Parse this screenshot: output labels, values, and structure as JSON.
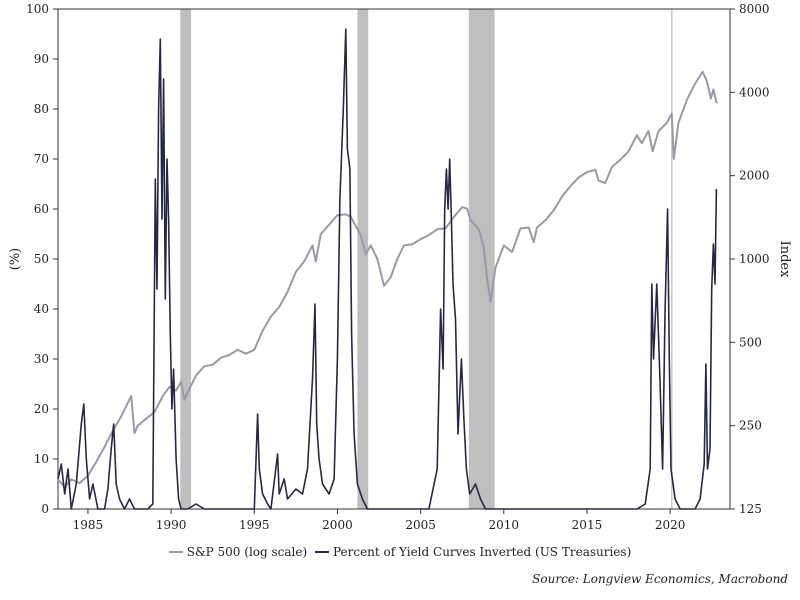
{
  "chart_data": {
    "type": "line",
    "xlim": [
      1983.2,
      2023.6
    ],
    "x_ticks": [
      1985,
      1990,
      1995,
      2000,
      2005,
      2010,
      2015,
      2020
    ],
    "left_axis": {
      "label": "(%)",
      "ylim": [
        0,
        100
      ],
      "ticks": [
        0,
        10,
        20,
        30,
        40,
        50,
        60,
        70,
        80,
        90,
        100
      ]
    },
    "right_axis": {
      "label": "Index",
      "scale": "log",
      "ylim": [
        125,
        8000
      ],
      "ticks": [
        125,
        250,
        500,
        1000,
        2000,
        4000,
        8000
      ]
    },
    "recessions": [
      [
        1990.55,
        1991.2
      ],
      [
        2001.2,
        2001.85
      ],
      [
        2007.9,
        2009.45
      ]
    ],
    "vertical_line_x": 2020.1,
    "series": [
      {
        "name": "S&P 500 (log scale)",
        "axis": "right",
        "color": "#9a99a6",
        "points": [
          [
            1983.2,
            160
          ],
          [
            1983.6,
            150
          ],
          [
            1984.0,
            160
          ],
          [
            1984.5,
            155
          ],
          [
            1985.0,
            165
          ],
          [
            1985.5,
            185
          ],
          [
            1986.0,
            210
          ],
          [
            1986.5,
            240
          ],
          [
            1987.0,
            270
          ],
          [
            1987.6,
            320
          ],
          [
            1987.8,
            235
          ],
          [
            1988.0,
            250
          ],
          [
            1988.5,
            265
          ],
          [
            1989.0,
            280
          ],
          [
            1989.5,
            320
          ],
          [
            1989.9,
            345
          ],
          [
            1990.3,
            335
          ],
          [
            1990.6,
            360
          ],
          [
            1990.8,
            310
          ],
          [
            1991.0,
            330
          ],
          [
            1991.5,
            380
          ],
          [
            1992.0,
            410
          ],
          [
            1992.5,
            415
          ],
          [
            1993.0,
            440
          ],
          [
            1993.5,
            450
          ],
          [
            1994.0,
            470
          ],
          [
            1994.5,
            455
          ],
          [
            1995.0,
            470
          ],
          [
            1995.5,
            550
          ],
          [
            1996.0,
            620
          ],
          [
            1996.5,
            670
          ],
          [
            1997.0,
            760
          ],
          [
            1997.5,
            900
          ],
          [
            1998.0,
            980
          ],
          [
            1998.5,
            1120
          ],
          [
            1998.7,
            980
          ],
          [
            1999.0,
            1230
          ],
          [
            1999.5,
            1330
          ],
          [
            2000.0,
            1440
          ],
          [
            2000.5,
            1450
          ],
          [
            2000.8,
            1420
          ],
          [
            2001.0,
            1350
          ],
          [
            2001.4,
            1220
          ],
          [
            2001.7,
            1040
          ],
          [
            2002.0,
            1120
          ],
          [
            2002.4,
            1000
          ],
          [
            2002.8,
            800
          ],
          [
            2003.2,
            860
          ],
          [
            2003.6,
            1000
          ],
          [
            2004.0,
            1120
          ],
          [
            2004.5,
            1130
          ],
          [
            2005.0,
            1180
          ],
          [
            2005.5,
            1220
          ],
          [
            2006.0,
            1280
          ],
          [
            2006.5,
            1290
          ],
          [
            2007.0,
            1420
          ],
          [
            2007.5,
            1540
          ],
          [
            2007.8,
            1520
          ],
          [
            2008.0,
            1380
          ],
          [
            2008.5,
            1280
          ],
          [
            2008.8,
            1100
          ],
          [
            2009.0,
            850
          ],
          [
            2009.2,
            700
          ],
          [
            2009.5,
            930
          ],
          [
            2010.0,
            1120
          ],
          [
            2010.5,
            1060
          ],
          [
            2011.0,
            1290
          ],
          [
            2011.5,
            1300
          ],
          [
            2011.8,
            1150
          ],
          [
            2012.0,
            1300
          ],
          [
            2012.5,
            1380
          ],
          [
            2013.0,
            1500
          ],
          [
            2013.5,
            1680
          ],
          [
            2014.0,
            1830
          ],
          [
            2014.5,
            1970
          ],
          [
            2015.0,
            2060
          ],
          [
            2015.5,
            2100
          ],
          [
            2015.7,
            1920
          ],
          [
            2016.1,
            1880
          ],
          [
            2016.5,
            2150
          ],
          [
            2017.0,
            2280
          ],
          [
            2017.5,
            2450
          ],
          [
            2018.0,
            2800
          ],
          [
            2018.3,
            2620
          ],
          [
            2018.7,
            2900
          ],
          [
            2018.95,
            2450
          ],
          [
            2019.3,
            2900
          ],
          [
            2019.8,
            3100
          ],
          [
            2020.1,
            3350
          ],
          [
            2020.22,
            2300
          ],
          [
            2020.5,
            3100
          ],
          [
            2021.0,
            3750
          ],
          [
            2021.5,
            4300
          ],
          [
            2021.95,
            4750
          ],
          [
            2022.2,
            4400
          ],
          [
            2022.45,
            3800
          ],
          [
            2022.6,
            4100
          ],
          [
            2022.8,
            3650
          ]
        ]
      },
      {
        "name": "Percent of Yield Curves Inverted (US Treasuries)",
        "axis": "left",
        "color": "#282844",
        "points": [
          [
            1983.2,
            6
          ],
          [
            1983.4,
            9
          ],
          [
            1983.6,
            3
          ],
          [
            1983.8,
            8
          ],
          [
            1984.0,
            0
          ],
          [
            1984.3,
            5
          ],
          [
            1984.6,
            17
          ],
          [
            1984.75,
            21
          ],
          [
            1984.9,
            10
          ],
          [
            1985.1,
            2
          ],
          [
            1985.3,
            5
          ],
          [
            1985.6,
            0
          ],
          [
            1986.0,
            0
          ],
          [
            1986.2,
            4
          ],
          [
            1986.4,
            12
          ],
          [
            1986.55,
            17
          ],
          [
            1986.7,
            5
          ],
          [
            1986.9,
            2
          ],
          [
            1987.2,
            0
          ],
          [
            1987.5,
            2
          ],
          [
            1987.8,
            0
          ],
          [
            1988.6,
            0
          ],
          [
            1988.9,
            1
          ],
          [
            1989.05,
            66
          ],
          [
            1989.15,
            44
          ],
          [
            1989.25,
            80
          ],
          [
            1989.35,
            94
          ],
          [
            1989.45,
            58
          ],
          [
            1989.55,
            86
          ],
          [
            1989.65,
            42
          ],
          [
            1989.75,
            70
          ],
          [
            1989.85,
            58
          ],
          [
            1989.95,
            35
          ],
          [
            1990.05,
            20
          ],
          [
            1990.15,
            28
          ],
          [
            1990.3,
            10
          ],
          [
            1990.45,
            2
          ],
          [
            1990.6,
            0
          ],
          [
            1991.0,
            0
          ],
          [
            1991.5,
            1
          ],
          [
            1992.0,
            0
          ],
          [
            1993.0,
            0
          ],
          [
            1994.0,
            0
          ],
          [
            1995.0,
            0
          ],
          [
            1995.2,
            19
          ],
          [
            1995.3,
            8
          ],
          [
            1995.5,
            3
          ],
          [
            1995.8,
            1
          ],
          [
            1996.0,
            0
          ],
          [
            1996.4,
            11
          ],
          [
            1996.5,
            3
          ],
          [
            1996.8,
            6
          ],
          [
            1997.0,
            2
          ],
          [
            1997.5,
            4
          ],
          [
            1997.9,
            3
          ],
          [
            1998.2,
            8
          ],
          [
            1998.5,
            26
          ],
          [
            1998.65,
            41
          ],
          [
            1998.75,
            17
          ],
          [
            1998.9,
            10
          ],
          [
            1999.1,
            5
          ],
          [
            1999.5,
            3
          ],
          [
            1999.8,
            6
          ],
          [
            2000.0,
            30
          ],
          [
            2000.15,
            62
          ],
          [
            2000.35,
            80
          ],
          [
            2000.5,
            96
          ],
          [
            2000.6,
            72
          ],
          [
            2000.75,
            68
          ],
          [
            2000.85,
            35
          ],
          [
            2001.0,
            15
          ],
          [
            2001.2,
            5
          ],
          [
            2001.5,
            2
          ],
          [
            2001.8,
            0
          ],
          [
            2002.5,
            0
          ],
          [
            2004.0,
            0
          ],
          [
            2005.5,
            0
          ],
          [
            2006.0,
            8
          ],
          [
            2006.2,
            40
          ],
          [
            2006.35,
            28
          ],
          [
            2006.45,
            60
          ],
          [
            2006.55,
            68
          ],
          [
            2006.65,
            60
          ],
          [
            2006.75,
            70
          ],
          [
            2006.85,
            58
          ],
          [
            2006.95,
            45
          ],
          [
            2007.1,
            38
          ],
          [
            2007.25,
            15
          ],
          [
            2007.45,
            30
          ],
          [
            2007.6,
            18
          ],
          [
            2007.75,
            8
          ],
          [
            2007.95,
            3
          ],
          [
            2008.3,
            5
          ],
          [
            2008.6,
            2
          ],
          [
            2008.9,
            0
          ],
          [
            2010.0,
            0
          ],
          [
            2012.0,
            0
          ],
          [
            2014.0,
            0
          ],
          [
            2016.0,
            0
          ],
          [
            2017.0,
            0
          ],
          [
            2018.0,
            0
          ],
          [
            2018.5,
            1
          ],
          [
            2018.8,
            8
          ],
          [
            2018.9,
            45
          ],
          [
            2019.0,
            30
          ],
          [
            2019.2,
            45
          ],
          [
            2019.4,
            25
          ],
          [
            2019.55,
            8
          ],
          [
            2019.7,
            40
          ],
          [
            2019.85,
            60
          ],
          [
            2019.95,
            30
          ],
          [
            2020.05,
            8
          ],
          [
            2020.3,
            2
          ],
          [
            2020.6,
            0
          ],
          [
            2021.0,
            0
          ],
          [
            2021.5,
            0
          ],
          [
            2021.8,
            2
          ],
          [
            2022.05,
            9
          ],
          [
            2022.15,
            29
          ],
          [
            2022.25,
            8
          ],
          [
            2022.4,
            12
          ],
          [
            2022.5,
            44
          ],
          [
            2022.6,
            53
          ],
          [
            2022.7,
            45
          ],
          [
            2022.78,
            64
          ]
        ]
      }
    ]
  },
  "legend": {
    "sp500": "S&P 500 (log scale)",
    "yield": "Percent of Yield Curves Inverted (US Treasuries)"
  },
  "source": "Source: Longview Economics, Macrobond"
}
